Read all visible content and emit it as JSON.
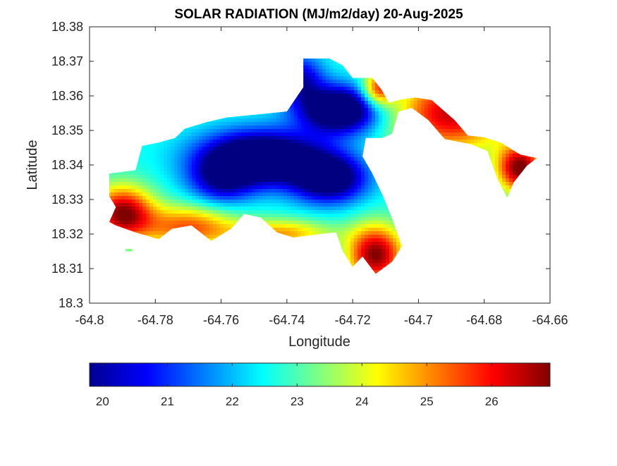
{
  "chart_data": {
    "type": "heatmap",
    "title": "SOLAR RADIATION (MJ/m2/day) 20-Aug-2025",
    "xlabel": "Longitude",
    "ylabel": "Latitude",
    "xlim": [
      -64.8,
      -64.66
    ],
    "ylim": [
      18.3,
      18.38
    ],
    "x_ticks": [
      "-64.8",
      "-64.78",
      "-64.76",
      "-64.74",
      "-64.72",
      "-64.7",
      "-64.68",
      "-64.66"
    ],
    "y_ticks": [
      "18.3",
      "18.31",
      "18.32",
      "18.33",
      "18.34",
      "18.35",
      "18.36",
      "18.37",
      "18.38"
    ],
    "colorbar": {
      "min": 19.8,
      "max": 26.9,
      "ticks": [
        "20",
        "21",
        "22",
        "23",
        "24",
        "25",
        "26"
      ],
      "colormap": "jet"
    },
    "grid": false,
    "regions": [
      {
        "name": "island-outline",
        "outline": [
          [
            -64.794,
            18.3375
          ],
          [
            -64.786,
            18.3385
          ],
          [
            -64.784,
            18.3455
          ],
          [
            -64.779,
            18.3465
          ],
          [
            -64.774,
            18.3478
          ],
          [
            -64.771,
            18.3505
          ],
          [
            -64.764,
            18.3525
          ],
          [
            -64.758,
            18.3538
          ],
          [
            -64.75,
            18.3545
          ],
          [
            -64.74,
            18.3555
          ],
          [
            -64.735,
            18.3625
          ],
          [
            -64.735,
            18.3708
          ],
          [
            -64.727,
            18.3708
          ],
          [
            -64.723,
            18.3688
          ],
          [
            -64.72,
            18.3652
          ],
          [
            -64.714,
            18.3652
          ],
          [
            -64.711,
            18.3615
          ],
          [
            -64.709,
            18.358
          ],
          [
            -64.705,
            18.359
          ],
          [
            -64.701,
            18.3595
          ],
          [
            -64.696,
            18.3588
          ],
          [
            -64.689,
            18.353
          ],
          [
            -64.685,
            18.3485
          ],
          [
            -64.68,
            18.348
          ],
          [
            -64.675,
            18.3465
          ],
          [
            -64.669,
            18.343
          ],
          [
            -64.664,
            18.342
          ],
          [
            -64.667,
            18.3398
          ],
          [
            -64.671,
            18.335
          ],
          [
            -64.673,
            18.3305
          ],
          [
            -64.676,
            18.336
          ],
          [
            -64.679,
            18.344
          ],
          [
            -64.684,
            18.346
          ],
          [
            -64.692,
            18.3475
          ],
          [
            -64.697,
            18.353
          ],
          [
            -64.702,
            18.3565
          ],
          [
            -64.706,
            18.3555
          ],
          [
            -64.708,
            18.349
          ],
          [
            -64.711,
            18.3478
          ],
          [
            -64.716,
            18.3478
          ],
          [
            -64.717,
            18.3425
          ],
          [
            -64.714,
            18.3375
          ],
          [
            -64.711,
            18.3315
          ],
          [
            -64.708,
            18.3245
          ],
          [
            -64.705,
            18.3165
          ],
          [
            -64.708,
            18.312
          ],
          [
            -64.713,
            18.3085
          ],
          [
            -64.717,
            18.3135
          ],
          [
            -64.72,
            18.3105
          ],
          [
            -64.723,
            18.315
          ],
          [
            -64.725,
            18.3205
          ],
          [
            -64.73,
            18.32
          ],
          [
            -64.738,
            18.319
          ],
          [
            -64.743,
            18.3205
          ],
          [
            -64.748,
            18.3248
          ],
          [
            -64.753,
            18.3258
          ],
          [
            -64.757,
            18.3215
          ],
          [
            -64.763,
            18.318
          ],
          [
            -64.769,
            18.3225
          ],
          [
            -64.775,
            18.3215
          ],
          [
            -64.779,
            18.3185
          ],
          [
            -64.786,
            18.3205
          ],
          [
            -64.792,
            18.3225
          ],
          [
            -64.794,
            18.3235
          ],
          [
            -64.792,
            18.3278
          ],
          [
            -64.794,
            18.331
          ]
        ]
      },
      {
        "name": "islet",
        "outline": [
          [
            -64.789,
            18.3157
          ],
          [
            -64.787,
            18.3157
          ],
          [
            -64.787,
            18.315
          ],
          [
            -64.789,
            18.315
          ]
        ]
      }
    ],
    "field": {
      "base_value": 22.6,
      "gaussian_terms": [
        {
          "lon": -64.724,
          "lat": 18.356,
          "amp": -4.3,
          "sigma_lon": 0.0085,
          "sigma_lat": 0.0048
        },
        {
          "lon": -64.748,
          "lat": 18.342,
          "amp": -4.5,
          "sigma_lon": 0.013,
          "sigma_lat": 0.0055
        },
        {
          "lon": -64.727,
          "lat": 18.336,
          "amp": -3.5,
          "sigma_lon": 0.008,
          "sigma_lat": 0.005
        },
        {
          "lon": -64.76,
          "lat": 18.335,
          "amp": -2.0,
          "sigma_lon": 0.007,
          "sigma_lat": 0.005
        },
        {
          "lon": -64.736,
          "lat": 18.365,
          "amp": -2.3,
          "sigma_lon": 0.005,
          "sigma_lat": 0.005
        },
        {
          "lon": -64.79,
          "lat": 18.326,
          "amp": 4.2,
          "sigma_lon": 0.0065,
          "sigma_lat": 0.0055
        },
        {
          "lon": -64.77,
          "lat": 18.322,
          "amp": 2.8,
          "sigma_lon": 0.01,
          "sigma_lat": 0.0045
        },
        {
          "lon": -64.742,
          "lat": 18.32,
          "amp": 2.3,
          "sigma_lon": 0.011,
          "sigma_lat": 0.003
        },
        {
          "lon": -64.713,
          "lat": 18.314,
          "amp": 4.3,
          "sigma_lon": 0.006,
          "sigma_lat": 0.006
        },
        {
          "lon": -64.712,
          "lat": 18.362,
          "amp": 3.2,
          "sigma_lon": 0.0035,
          "sigma_lat": 0.0035
        },
        {
          "lon": -64.69,
          "lat": 18.355,
          "amp": 3.8,
          "sigma_lon": 0.012,
          "sigma_lat": 0.008
        },
        {
          "lon": -64.669,
          "lat": 18.339,
          "amp": 4.4,
          "sigma_lon": 0.005,
          "sigma_lat": 0.005
        }
      ]
    }
  }
}
